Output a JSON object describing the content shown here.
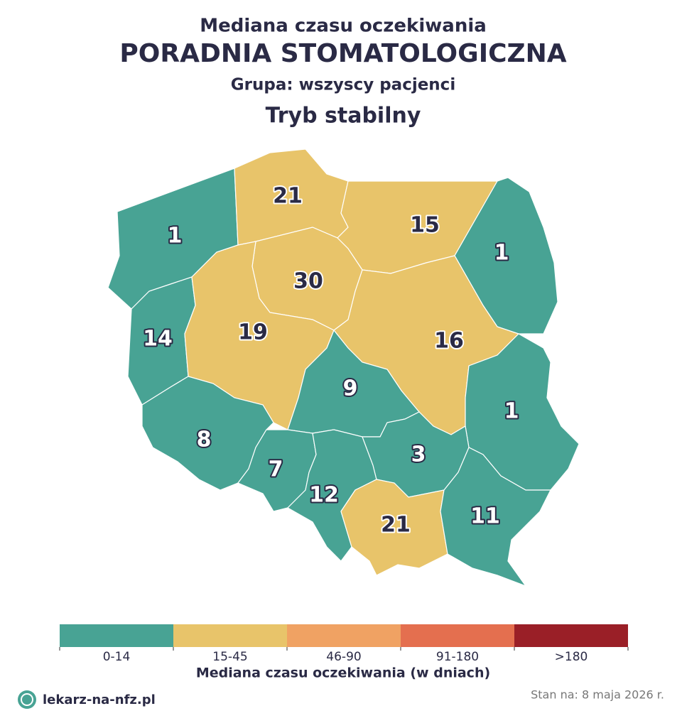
{
  "header": {
    "title": "Mediana czasu oczekiwania",
    "subtitle": "PORADNIA STOMATOLOGICZNA",
    "group": "Grupa: wszyscy pacjenci",
    "mode": "Tryb stabilny"
  },
  "map": {
    "regions": [
      {
        "value": 1,
        "color": "#48a394"
      },
      {
        "value": 21,
        "color": "#e8c46a"
      },
      {
        "value": 15,
        "color": "#e8c46a"
      },
      {
        "value": 1,
        "color": "#48a394"
      },
      {
        "value": 30,
        "color": "#e8c46a"
      },
      {
        "value": 14,
        "color": "#48a394"
      },
      {
        "value": 19,
        "color": "#e8c46a"
      },
      {
        "value": 16,
        "color": "#e8c46a"
      },
      {
        "value": 9,
        "color": "#48a394"
      },
      {
        "value": 1,
        "color": "#48a394"
      },
      {
        "value": 8,
        "color": "#48a394"
      },
      {
        "value": 7,
        "color": "#48a394"
      },
      {
        "value": 12,
        "color": "#48a394"
      },
      {
        "value": 3,
        "color": "#48a394"
      },
      {
        "value": 21,
        "color": "#e8c46a"
      },
      {
        "value": 11,
        "color": "#48a394"
      }
    ]
  },
  "legend": {
    "title": "Mediana czasu oczekiwania (w dniach)",
    "bins": [
      {
        "label": "0-14",
        "color": "#48a394"
      },
      {
        "label": "15-45",
        "color": "#e8c46a"
      },
      {
        "label": "46-90",
        "color": "#f0a263"
      },
      {
        "label": "91-180",
        "color": "#e46f4f"
      },
      {
        "label": ">180",
        "color": "#9a1f27"
      }
    ]
  },
  "footer": {
    "site": "lekarz-na-nfz.pl",
    "date": "Stan na: 8 maja 2026 r."
  }
}
